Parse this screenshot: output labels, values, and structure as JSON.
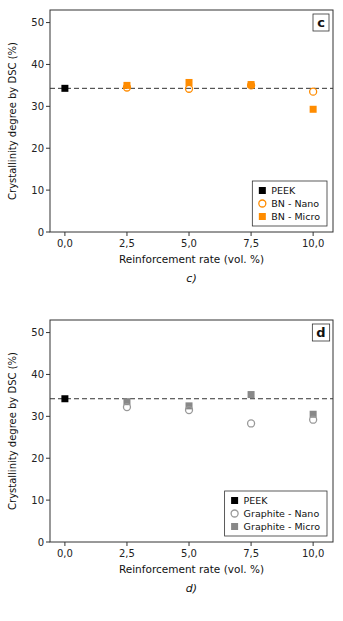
{
  "chart_data": [
    {
      "type": "scatter",
      "title": "c",
      "subtitle": "c)",
      "xlabel": "Reinforcement rate (vol. %)",
      "ylabel": "Crystallinity degree by DSC (%)",
      "series": [
        {
          "name": "PEEK",
          "color": "#000000",
          "marker": "square",
          "x": [
            0
          ],
          "values": [
            34.3
          ]
        },
        {
          "name": "BN - Nano",
          "color": "#FF8C00",
          "marker": "open-circle",
          "x": [
            2.5,
            5.0,
            7.5,
            10.0
          ],
          "values": [
            34.5,
            34.2,
            35.0,
            33.5
          ]
        },
        {
          "name": "BN - Micro",
          "color": "#FF8C00",
          "marker": "square",
          "x": [
            2.5,
            5.0,
            7.5,
            10.0
          ],
          "values": [
            35.0,
            35.7,
            35.2,
            29.3
          ]
        }
      ],
      "reference_line": {
        "value": 34.3,
        "color": "#333333",
        "line_style": "dashed"
      },
      "xlim": [
        -0.6,
        10.8
      ],
      "xticks": [
        {
          "value": 0,
          "label": "0,0"
        },
        {
          "value": 2.5,
          "label": "2,5"
        },
        {
          "value": 5.0,
          "label": "5,0"
        },
        {
          "value": 7.5,
          "label": "7,5"
        },
        {
          "value": 10.0,
          "label": "10,0"
        }
      ],
      "ylim": [
        0,
        53
      ],
      "yticks": [
        0,
        10,
        20,
        30,
        40,
        50
      ],
      "legend": "lower right",
      "grid": false
    },
    {
      "type": "scatter",
      "title": "d",
      "subtitle": "d)",
      "xlabel": "Reinforcement rate (vol. %)",
      "ylabel": "Crystallinity degree by DSC (%)",
      "series": [
        {
          "name": "PEEK",
          "color": "#000000",
          "marker": "square",
          "x": [
            0
          ],
          "values": [
            34.2
          ]
        },
        {
          "name": "Graphite - Nano",
          "color": "#999999",
          "marker": "open-circle",
          "x": [
            2.5,
            5.0,
            7.5,
            10.0
          ],
          "values": [
            32.2,
            31.5,
            28.3,
            29.2
          ]
        },
        {
          "name": "Graphite - Micro",
          "color": "#888888",
          "marker": "square",
          "x": [
            2.5,
            5.0,
            7.5,
            10.0
          ],
          "values": [
            33.5,
            32.5,
            35.2,
            30.5
          ]
        }
      ],
      "reference_line": {
        "value": 34.2,
        "color": "#333333",
        "line_style": "dashed"
      },
      "xlim": [
        -0.6,
        10.8
      ],
      "xticks": [
        {
          "value": 0,
          "label": "0,0"
        },
        {
          "value": 2.5,
          "label": "2,5"
        },
        {
          "value": 5.0,
          "label": "5,0"
        },
        {
          "value": 7.5,
          "label": "7,5"
        },
        {
          "value": 10.0,
          "label": "10,0"
        }
      ],
      "ylim": [
        0,
        53
      ],
      "yticks": [
        0,
        10,
        20,
        30,
        40,
        50
      ],
      "legend": "lower right",
      "grid": false
    }
  ]
}
